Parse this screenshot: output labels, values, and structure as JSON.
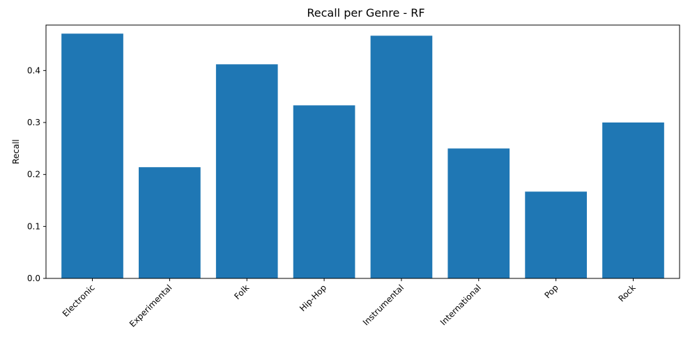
{
  "chart_data": {
    "type": "bar",
    "title": "Recall per Genre - RF",
    "xlabel": "",
    "ylabel": "Recall",
    "categories": [
      "Electronic",
      "Experimental",
      "Folk",
      "Hip-Hop",
      "Instrumental",
      "International",
      "Pop",
      "Rock"
    ],
    "values": [
      0.471,
      0.214,
      0.412,
      0.333,
      0.467,
      0.25,
      0.167,
      0.3
    ],
    "ylim": [
      0,
      0.4875
    ],
    "yticks": [
      0.0,
      0.1,
      0.2,
      0.3,
      0.4
    ],
    "ytick_labels": [
      "0.0",
      "0.1",
      "0.2",
      "0.3",
      "0.4"
    ],
    "bar_color": "#1f77b4",
    "grid": false,
    "legend": "none"
  }
}
